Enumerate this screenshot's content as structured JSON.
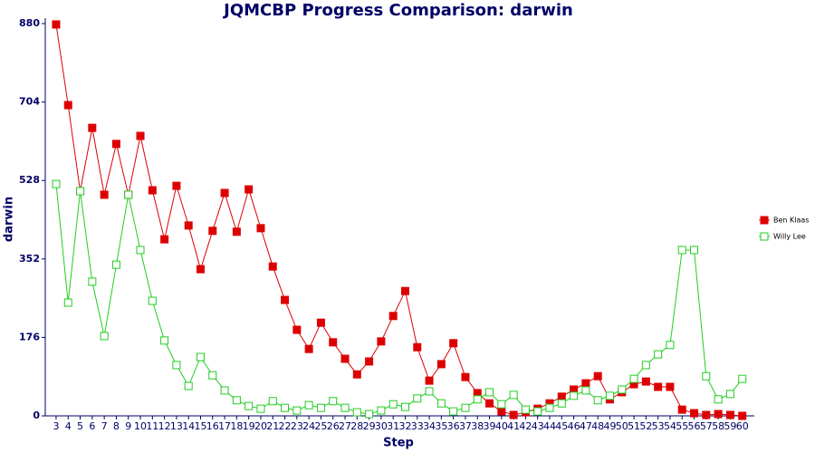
{
  "chart_data": {
    "type": "line",
    "title": "JQMCBP Progress Comparison: darwin",
    "x_label": "Step",
    "y_label": "darwin",
    "x": [
      3,
      4,
      5,
      6,
      7,
      8,
      9,
      10,
      11,
      12,
      13,
      14,
      15,
      16,
      17,
      18,
      19,
      20,
      21,
      22,
      23,
      24,
      25,
      26,
      27,
      28,
      29,
      30,
      31,
      32,
      33,
      34,
      35,
      36,
      37,
      38,
      39,
      40,
      41,
      42,
      43,
      44,
      45,
      46,
      47,
      48,
      49,
      50,
      51,
      52,
      53,
      54,
      55,
      56,
      57,
      58,
      59,
      60
    ],
    "xlim": [
      2.1,
      61
    ],
    "ylim": [
      0,
      880
    ],
    "yticks": [
      0,
      176,
      352,
      528,
      704,
      880
    ],
    "grid": false,
    "legend": "right",
    "series": [
      {
        "name": "Ben Klaas",
        "color": "#dd0000",
        "marker": "filled",
        "values": [
          878,
          697,
          504,
          646,
          496,
          610,
          496,
          628,
          506,
          396,
          516,
          427,
          329,
          415,
          500,
          413,
          508,
          421,
          335,
          260,
          193,
          150,
          209,
          165,
          128,
          93,
          122,
          167,
          224,
          280,
          154,
          79,
          116,
          163,
          87,
          51,
          28,
          10,
          2,
          8,
          16,
          28,
          43,
          59,
          73,
          89,
          37,
          53,
          71,
          77,
          65,
          65,
          14,
          6,
          2,
          4,
          2,
          0
        ]
      },
      {
        "name": "Willy Lee",
        "color": "#22cc22",
        "marker": "hollow",
        "values": [
          520,
          254,
          504,
          301,
          179,
          339,
          496,
          372,
          258,
          169,
          114,
          67,
          132,
          91,
          57,
          35,
          22,
          16,
          33,
          18,
          12,
          24,
          18,
          33,
          18,
          8,
          4,
          12,
          26,
          20,
          39,
          55,
          28,
          10,
          18,
          37,
          53,
          26,
          47,
          14,
          10,
          18,
          28,
          45,
          57,
          35,
          45,
          59,
          83,
          114,
          138,
          159,
          372,
          372,
          89,
          37,
          49,
          83
        ]
      }
    ]
  }
}
